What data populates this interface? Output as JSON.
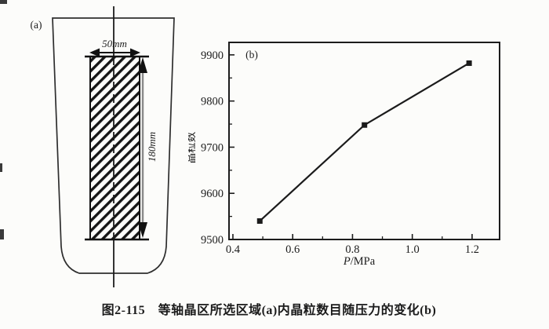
{
  "figure": {
    "caption": "图2-115　等轴晶区所选区域(a)内晶粒数目随压力的变化(b)"
  },
  "diagram_a": {
    "panel_label": "(a)",
    "width_dimension": "50mm",
    "height_dimension": "180mm"
  },
  "chart_data": {
    "type": "line",
    "panel_label": "(b)",
    "title": "",
    "xlabel": "P/MPa",
    "ylabel": "晶粒数",
    "series": [
      {
        "name": "晶粒数",
        "x": [
          0.49,
          0.84,
          1.19
        ],
        "y": [
          9540,
          9748,
          9882
        ]
      }
    ],
    "xlim": [
      0.387,
      1.292
    ],
    "ylim": [
      9500,
      9927
    ],
    "x_ticks": [
      0.4,
      0.6,
      0.8,
      1.0,
      1.2
    ],
    "y_ticks": [
      9500,
      9600,
      9700,
      9800,
      9900
    ],
    "x_minor_ticks": [
      0.5,
      0.7,
      0.9,
      1.1
    ],
    "y_minor_ticks": [
      9550,
      9650,
      9750,
      9850
    ],
    "marker": "square",
    "grid": "off",
    "legend": "none",
    "line_color": "#1b1b1b"
  },
  "colors": {
    "ink": "#1c1c1c",
    "paper": "#fcfcfa",
    "arrow_shaft_gray": "#8a8a8a"
  }
}
